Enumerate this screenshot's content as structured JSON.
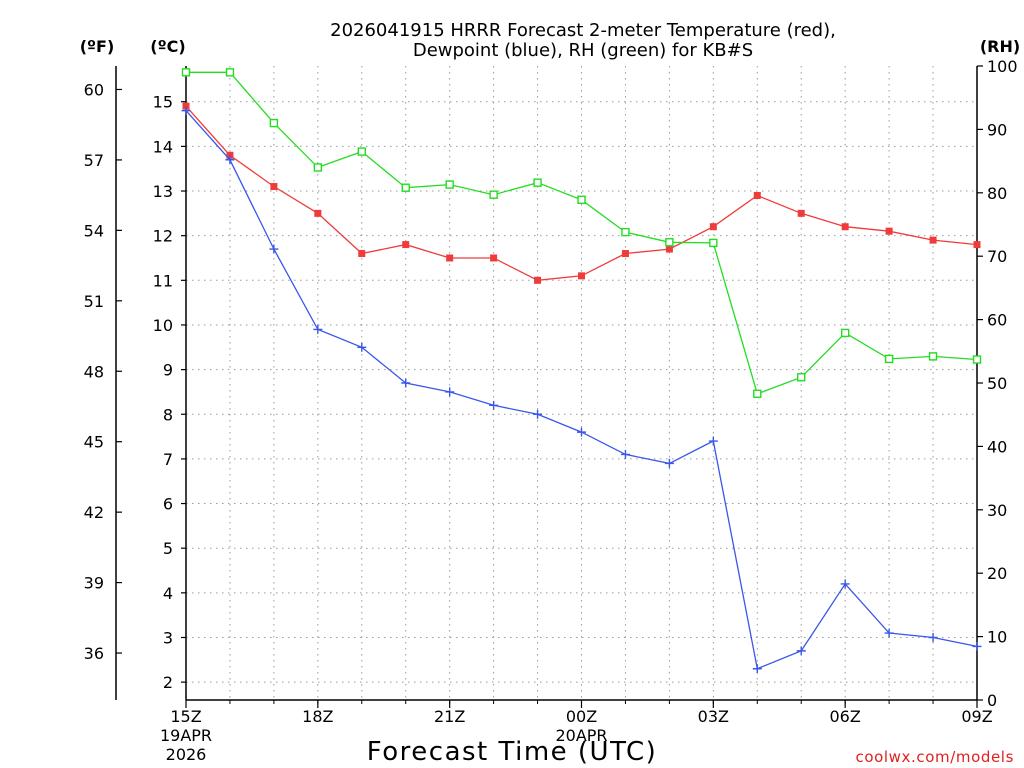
{
  "chart_data": {
    "type": "line",
    "title_line1": "2026041915 HRRR Forecast 2-meter Temperature (red),",
    "title_line2": "Dewpoint (blue), RH (green) for KB#S",
    "units_f": "(ºF)",
    "units_c": "(ºC)",
    "units_rh": "(RH)",
    "xlabel": "Forecast Time (UTC)",
    "credit": "coolwx.com/models",
    "x_hours": [
      0,
      1,
      2,
      3,
      4,
      5,
      6,
      7,
      8,
      9,
      10,
      11,
      12,
      13,
      14,
      15,
      16,
      17,
      18
    ],
    "x_ticks": [
      {
        "hour": 0,
        "lines": [
          "15Z",
          "19APR",
          "2026"
        ]
      },
      {
        "hour": 3,
        "lines": [
          "18Z"
        ]
      },
      {
        "hour": 6,
        "lines": [
          "21Z"
        ]
      },
      {
        "hour": 9,
        "lines": [
          "00Z",
          "20APR"
        ]
      },
      {
        "hour": 12,
        "lines": [
          "03Z"
        ]
      },
      {
        "hour": 15,
        "lines": [
          "06Z"
        ]
      },
      {
        "hour": 18,
        "lines": [
          "09Z"
        ]
      }
    ],
    "c_axis": {
      "min": 1.6,
      "max": 15.8,
      "ticks": [
        2,
        3,
        4,
        5,
        6,
        7,
        8,
        9,
        10,
        11,
        12,
        13,
        14,
        15
      ]
    },
    "f_axis": {
      "min": 34.0,
      "max": 61.0,
      "ticks": [
        36,
        39,
        42,
        45,
        48,
        51,
        54,
        57,
        60
      ]
    },
    "rh_axis": {
      "min": 0,
      "max": 100,
      "ticks": [
        0,
        10,
        20,
        30,
        40,
        50,
        60,
        70,
        80,
        90,
        100
      ]
    },
    "grid": true,
    "series": [
      {
        "name": "Temperature",
        "axis": "c",
        "color": "#ef3b3b",
        "marker": "filled-square",
        "values": [
          14.9,
          13.8,
          13.1,
          12.5,
          11.6,
          11.8,
          11.5,
          11.5,
          11.0,
          11.1,
          11.6,
          11.7,
          12.2,
          12.9,
          12.5,
          12.2,
          12.1,
          11.9,
          11.8
        ]
      },
      {
        "name": "Dewpoint",
        "axis": "c",
        "color": "#3a57e8",
        "marker": "plus",
        "values": [
          14.8,
          13.7,
          11.7,
          9.9,
          9.5,
          8.7,
          8.5,
          8.2,
          8.0,
          7.6,
          7.1,
          6.9,
          7.4,
          2.3,
          2.7,
          4.2,
          3.1,
          3.0,
          2.8
        ]
      },
      {
        "name": "RH",
        "axis": "rh",
        "color": "#22dd22",
        "marker": "open-square",
        "values": [
          99,
          99,
          91,
          84,
          86.5,
          80.8,
          81.3,
          79.7,
          81.6,
          78.9,
          73.8,
          72.2,
          72.1,
          48.3,
          50.9,
          57.9,
          53.8,
          54.2,
          53.7
        ]
      }
    ]
  }
}
